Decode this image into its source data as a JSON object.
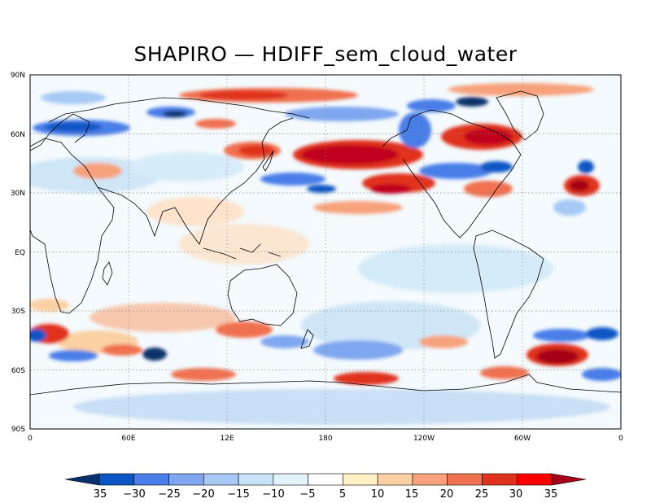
{
  "map": {
    "title": "SHAPIRO — HDIFF_sem_cloud_water",
    "lat_labels": [
      "90N",
      "60N",
      "30N",
      "EQ",
      "30S",
      "60S",
      "90S"
    ],
    "lon_labels": [
      "0",
      "60E",
      "12E",
      "180",
      "120W",
      "60W",
      "0"
    ],
    "colorbar": {
      "labels": [
        "35",
        "−30",
        "−25",
        "−20",
        "−15",
        "−10",
        "−5",
        "5",
        "10",
        "15",
        "20",
        "25",
        "30",
        "35"
      ],
      "colors": [
        "#08306b",
        "#0a56c4",
        "#4a7ee8",
        "#7fa7ef",
        "#a6c9f5",
        "#c8e3f7",
        "#e2f3fa",
        "#ffffff",
        "#fff1c4",
        "#fbd0a2",
        "#f7a27c",
        "#f07150",
        "#e0321e",
        "#ff0000",
        "#a50018"
      ]
    }
  }
}
